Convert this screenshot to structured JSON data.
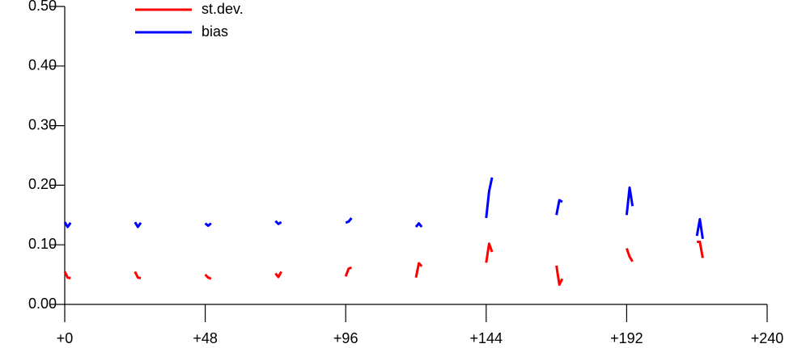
{
  "chart_data": {
    "type": "line",
    "x": [
      0,
      1,
      2,
      12,
      24,
      25,
      26,
      36,
      48,
      49,
      50,
      60,
      72,
      73,
      74,
      84,
      96,
      97,
      98,
      108,
      120,
      121,
      122,
      132,
      144,
      145,
      146,
      156,
      168,
      169,
      170,
      180,
      192,
      193,
      194,
      204,
      216,
      217,
      218
    ],
    "series": [
      {
        "name": "st.dev.",
        "color": "#ff0000",
        "values": [
          0.055,
          0.045,
          0.044,
          null,
          0.055,
          0.045,
          0.044,
          null,
          0.05,
          0.045,
          0.043,
          null,
          0.052,
          0.046,
          0.055,
          null,
          0.047,
          0.06,
          0.062,
          null,
          0.045,
          0.069,
          0.064,
          null,
          0.07,
          0.102,
          0.088,
          null,
          0.065,
          0.033,
          0.043,
          null,
          0.094,
          0.08,
          0.072,
          null,
          0.105,
          0.105,
          0.078
        ]
      },
      {
        "name": "bias",
        "color": "#0000ff",
        "values": [
          0.138,
          0.13,
          0.137,
          null,
          0.138,
          0.13,
          0.137,
          null,
          0.136,
          0.132,
          0.136,
          null,
          0.14,
          0.135,
          0.138,
          null,
          0.137,
          0.139,
          0.145,
          null,
          0.13,
          0.136,
          0.13,
          null,
          0.145,
          0.19,
          0.213,
          null,
          0.15,
          0.175,
          0.172,
          null,
          0.15,
          0.196,
          0.165,
          null,
          0.115,
          0.143,
          0.11
        ]
      }
    ],
    "xlim": [
      0,
      240
    ],
    "xticks": [
      {
        "value": 0,
        "label": "+0"
      },
      {
        "value": 48,
        "label": "+48"
      },
      {
        "value": 96,
        "label": "+96"
      },
      {
        "value": 144,
        "label": "+144"
      },
      {
        "value": 192,
        "label": "+192"
      },
      {
        "value": 240,
        "label": "+240"
      }
    ],
    "ylim": [
      0,
      0.5
    ],
    "yticks": [
      {
        "value": 0,
        "label": "0.00"
      },
      {
        "value": 0.1,
        "label": "0.10"
      },
      {
        "value": 0.2,
        "label": "0.20"
      },
      {
        "value": 0.3,
        "label": "0.30"
      },
      {
        "value": 0.4,
        "label": "0.40"
      },
      {
        "value": 0.5,
        "label": "0.50"
      }
    ],
    "legend": "upper-left"
  }
}
